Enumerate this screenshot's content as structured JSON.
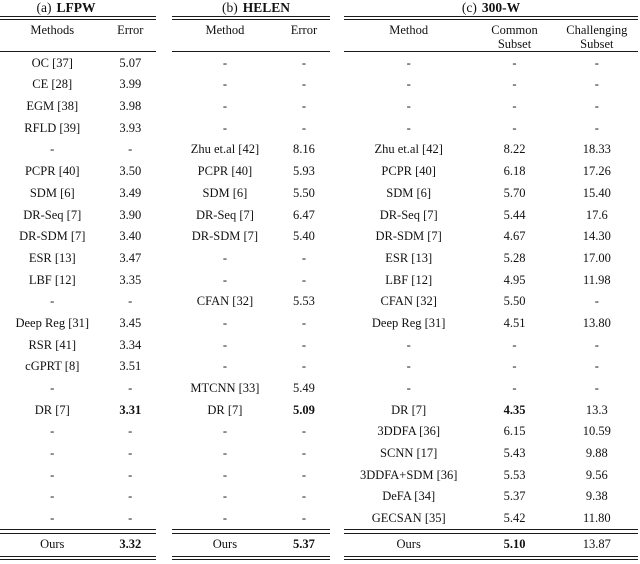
{
  "page": {
    "background": "#ffffff",
    "text_color": "#111111",
    "rule_color": "#1a1a1a"
  },
  "tables": [
    {
      "caption": {
        "prefix": "(a)",
        "name": "LFPW"
      },
      "headers": [
        "Methods",
        "Error"
      ],
      "rows": [
        {
          "cells": [
            "OC [37]",
            "5.07"
          ],
          "bold": []
        },
        {
          "cells": [
            "CE [28]",
            "3.99"
          ],
          "bold": []
        },
        {
          "cells": [
            "EGM [38]",
            "3.98"
          ],
          "bold": []
        },
        {
          "cells": [
            "RFLD [39]",
            "3.93"
          ],
          "bold": []
        },
        {
          "cells": [
            "-",
            "-"
          ],
          "bold": []
        },
        {
          "cells": [
            "PCPR [40]",
            "3.50"
          ],
          "bold": []
        },
        {
          "cells": [
            "SDM [6]",
            "3.49"
          ],
          "bold": []
        },
        {
          "cells": [
            "DR-Seq [7]",
            "3.90"
          ],
          "bold": []
        },
        {
          "cells": [
            "DR-SDM [7]",
            "3.40"
          ],
          "bold": []
        },
        {
          "cells": [
            "ESR [13]",
            "3.47"
          ],
          "bold": []
        },
        {
          "cells": [
            "LBF [12]",
            "3.35"
          ],
          "bold": []
        },
        {
          "cells": [
            "-",
            "-"
          ],
          "bold": []
        },
        {
          "cells": [
            "Deep Reg [31]",
            "3.45"
          ],
          "bold": []
        },
        {
          "cells": [
            "RSR [41]",
            "3.34"
          ],
          "bold": []
        },
        {
          "cells": [
            "cGPRT [8]",
            "3.51"
          ],
          "bold": []
        },
        {
          "cells": [
            "-",
            "-"
          ],
          "bold": []
        },
        {
          "cells": [
            "DR [7]",
            "3.31"
          ],
          "bold": [
            1
          ]
        },
        {
          "cells": [
            "-",
            "-"
          ],
          "bold": []
        },
        {
          "cells": [
            "-",
            "-"
          ],
          "bold": []
        },
        {
          "cells": [
            "-",
            "-"
          ],
          "bold": []
        },
        {
          "cells": [
            "-",
            "-"
          ],
          "bold": []
        },
        {
          "cells": [
            "-",
            "-"
          ],
          "bold": []
        }
      ],
      "ours_row": {
        "cells": [
          "Ours",
          "3.32"
        ],
        "bold": [
          1
        ]
      }
    },
    {
      "caption": {
        "prefix": "(b)",
        "name": "HELEN"
      },
      "headers": [
        "Method",
        "Error"
      ],
      "rows": [
        {
          "cells": [
            "-",
            "-"
          ],
          "bold": []
        },
        {
          "cells": [
            "-",
            "-"
          ],
          "bold": []
        },
        {
          "cells": [
            "-",
            "-"
          ],
          "bold": []
        },
        {
          "cells": [
            "-",
            "-"
          ],
          "bold": []
        },
        {
          "cells": [
            "Zhu et.al [42]",
            "8.16"
          ],
          "bold": []
        },
        {
          "cells": [
            "PCPR [40]",
            "5.93"
          ],
          "bold": []
        },
        {
          "cells": [
            "SDM [6]",
            "5.50"
          ],
          "bold": []
        },
        {
          "cells": [
            "DR-Seq [7]",
            "6.47"
          ],
          "bold": []
        },
        {
          "cells": [
            "DR-SDM [7]",
            "5.40"
          ],
          "bold": []
        },
        {
          "cells": [
            "-",
            "-"
          ],
          "bold": []
        },
        {
          "cells": [
            "-",
            "-"
          ],
          "bold": []
        },
        {
          "cells": [
            "CFAN [32]",
            "5.53"
          ],
          "bold": []
        },
        {
          "cells": [
            "-",
            "-"
          ],
          "bold": []
        },
        {
          "cells": [
            "-",
            "-"
          ],
          "bold": []
        },
        {
          "cells": [
            "-",
            "-"
          ],
          "bold": []
        },
        {
          "cells": [
            "MTCNN [33]",
            "5.49"
          ],
          "bold": []
        },
        {
          "cells": [
            "DR [7]",
            "5.09"
          ],
          "bold": [
            1
          ]
        },
        {
          "cells": [
            "-",
            "-"
          ],
          "bold": []
        },
        {
          "cells": [
            "-",
            "-"
          ],
          "bold": []
        },
        {
          "cells": [
            "-",
            "-"
          ],
          "bold": []
        },
        {
          "cells": [
            "-",
            "-"
          ],
          "bold": []
        },
        {
          "cells": [
            "-",
            "-"
          ],
          "bold": []
        }
      ],
      "ours_row": {
        "cells": [
          "Ours",
          "5.37"
        ],
        "bold": [
          1
        ]
      }
    },
    {
      "caption": {
        "prefix": "(c)",
        "name": "300-W"
      },
      "headers": [
        "Method",
        "Common\nSubset",
        "Challenging\nSubset"
      ],
      "rows": [
        {
          "cells": [
            "-",
            "-",
            "-"
          ],
          "bold": []
        },
        {
          "cells": [
            "-",
            "-",
            "-"
          ],
          "bold": []
        },
        {
          "cells": [
            "-",
            "-",
            "-"
          ],
          "bold": []
        },
        {
          "cells": [
            "-",
            "-",
            "-"
          ],
          "bold": []
        },
        {
          "cells": [
            "Zhu et.al [42]",
            "8.22",
            "18.33"
          ],
          "bold": []
        },
        {
          "cells": [
            "PCPR [40]",
            "6.18",
            "17.26"
          ],
          "bold": []
        },
        {
          "cells": [
            "SDM [6]",
            "5.70",
            "15.40"
          ],
          "bold": []
        },
        {
          "cells": [
            "DR-Seq [7]",
            "5.44",
            "17.6"
          ],
          "bold": []
        },
        {
          "cells": [
            "DR-SDM [7]",
            "4.67",
            "14.30"
          ],
          "bold": []
        },
        {
          "cells": [
            "ESR [13]",
            "5.28",
            "17.00"
          ],
          "bold": []
        },
        {
          "cells": [
            "LBF [12]",
            "4.95",
            "11.98"
          ],
          "bold": []
        },
        {
          "cells": [
            "CFAN [32]",
            "5.50",
            "-"
          ],
          "bold": []
        },
        {
          "cells": [
            "Deep Reg [31]",
            "4.51",
            "13.80"
          ],
          "bold": []
        },
        {
          "cells": [
            "-",
            "-",
            "-"
          ],
          "bold": []
        },
        {
          "cells": [
            "-",
            "-",
            "-"
          ],
          "bold": []
        },
        {
          "cells": [
            "-",
            "-",
            "-"
          ],
          "bold": []
        },
        {
          "cells": [
            "DR [7]",
            "4.35",
            "13.3"
          ],
          "bold": [
            1
          ]
        },
        {
          "cells": [
            "3DDFA [36]",
            "6.15",
            "10.59"
          ],
          "bold": []
        },
        {
          "cells": [
            "SCNN [17]",
            "5.43",
            "9.88"
          ],
          "bold": []
        },
        {
          "cells": [
            "3DDFA+SDM [36]",
            "5.53",
            "9.56"
          ],
          "bold": []
        },
        {
          "cells": [
            "DeFA [34]",
            "5.37",
            "9.38"
          ],
          "bold": []
        },
        {
          "cells": [
            "GECSAN [35]",
            "5.42",
            "11.80"
          ],
          "bold": []
        }
      ],
      "ours_row": {
        "cells": [
          "Ours",
          "5.10",
          "13.87"
        ],
        "bold": [
          1
        ]
      }
    }
  ]
}
